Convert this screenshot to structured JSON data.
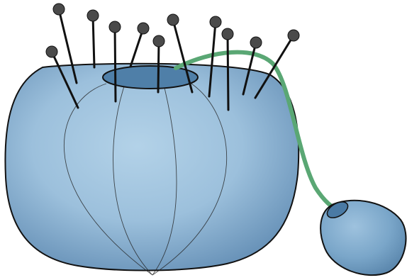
{
  "illustration": {
    "subject": "pin-cushion",
    "pin_count": 11,
    "colors": {
      "body_light": "#a9cbe3",
      "body_mid": "#88b0cf",
      "body_dark": "#5e8db3",
      "opening": "#4f7fa8",
      "outline": "#111111",
      "pin_shaft": "#111111",
      "pin_head": "#4a4a4a",
      "cord": "#5aa774",
      "strawberry": "#6d9dc3"
    }
  }
}
